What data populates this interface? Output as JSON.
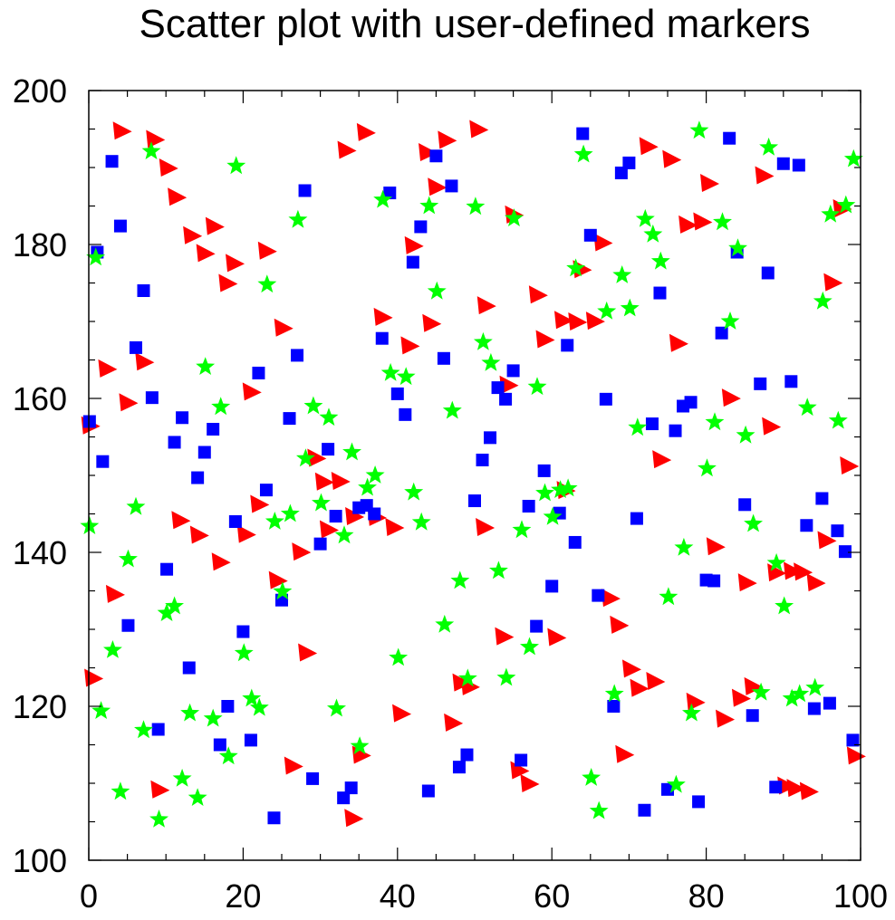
{
  "chart_data": {
    "type": "scatter",
    "title": "Scatter plot with user-defined markers",
    "xlabel": "",
    "ylabel": "",
    "xlim": [
      0,
      100
    ],
    "ylim": [
      100,
      200
    ],
    "grid": false,
    "x_ticks": [
      "0",
      "20",
      "40",
      "60",
      "80",
      "100"
    ],
    "y_ticks": [
      "100",
      "120",
      "140",
      "160",
      "180",
      "200"
    ],
    "series": [
      {
        "marker": "triangle",
        "color": "#ff0000",
        "points": [
          [
            4.3,
            194.8
          ],
          [
            8.6,
            193.7
          ],
          [
            10.3,
            190
          ],
          [
            11.4,
            186.2
          ],
          [
            13.4,
            181.2
          ],
          [
            15.1,
            178.9
          ],
          [
            16.3,
            182.4
          ],
          [
            18.9,
            177.6
          ],
          [
            18,
            175
          ],
          [
            23.1,
            179.2
          ],
          [
            2.4,
            163.9
          ],
          [
            5.1,
            159.5
          ],
          [
            7.2,
            164.8
          ],
          [
            3.4,
            134.6
          ],
          [
            0.6,
            123.7
          ],
          [
            9.2,
            109.2
          ],
          [
            11.9,
            144.2
          ],
          [
            14.3,
            142.3
          ],
          [
            17.1,
            138.8
          ],
          [
            20.4,
            142.4
          ],
          [
            21.1,
            160.9
          ],
          [
            25.2,
            169.2
          ],
          [
            22.1,
            146.3
          ],
          [
            24.5,
            136.4
          ],
          [
            26.5,
            112.3
          ],
          [
            27.5,
            140.1
          ],
          [
            28.3,
            127
          ],
          [
            29.5,
            152.3
          ],
          [
            30.5,
            149.2
          ],
          [
            31.1,
            143
          ],
          [
            32.6,
            149.3
          ],
          [
            33.4,
            192.3
          ],
          [
            35.9,
            194.6
          ],
          [
            34.4,
            144.7
          ],
          [
            35.3,
            113.7
          ],
          [
            34.3,
            105.5
          ],
          [
            37.3,
            144.6
          ],
          [
            39.6,
            143.3
          ],
          [
            38.1,
            170.6
          ],
          [
            41.6,
            166.9
          ],
          [
            42.1,
            179.9
          ],
          [
            43.9,
            192
          ],
          [
            46.4,
            193.6
          ],
          [
            45.1,
            187.5
          ],
          [
            44.4,
            169.8
          ],
          [
            40.5,
            119.1
          ],
          [
            47.2,
            117.9
          ],
          [
            48.3,
            123.1
          ],
          [
            49.4,
            122.6
          ],
          [
            50.5,
            195
          ],
          [
            51.5,
            172.1
          ],
          [
            55.1,
            183.9
          ],
          [
            54.4,
            161.8
          ],
          [
            58.2,
            173.5
          ],
          [
            59.1,
            167.7
          ],
          [
            61.5,
            170.2
          ],
          [
            63.3,
            170
          ],
          [
            65.6,
            170.1
          ],
          [
            63.9,
            176.8
          ],
          [
            66.6,
            180.3
          ],
          [
            61.8,
            148.1
          ],
          [
            53.8,
            129.1
          ],
          [
            51.3,
            143.3
          ],
          [
            55.8,
            111.7
          ],
          [
            57.1,
            110
          ],
          [
            60.6,
            129
          ],
          [
            67.6,
            134.1
          ],
          [
            68.7,
            130.6
          ],
          [
            69.4,
            113.8
          ],
          [
            70.3,
            124.9
          ],
          [
            71.3,
            122.4
          ],
          [
            73.4,
            123.3
          ],
          [
            74.2,
            152.1
          ],
          [
            72.5,
            192.8
          ],
          [
            75.5,
            191.1
          ],
          [
            76.4,
            167.2
          ],
          [
            77.6,
            182.6
          ],
          [
            79.5,
            183
          ],
          [
            80.4,
            188
          ],
          [
            83.2,
            160.1
          ],
          [
            81.2,
            140.8
          ],
          [
            84.5,
            121.1
          ],
          [
            86.1,
            122.6
          ],
          [
            85.3,
            136.1
          ],
          [
            82.4,
            118.4
          ],
          [
            78.6,
            120.6
          ],
          [
            88.4,
            156.4
          ],
          [
            87.5,
            189
          ],
          [
            89.1,
            137.4
          ],
          [
            91.2,
            137.6
          ],
          [
            92.5,
            137.5
          ],
          [
            94.2,
            136.1
          ],
          [
            90.4,
            109.7
          ],
          [
            91.6,
            109.4
          ],
          [
            93.3,
            109
          ],
          [
            95.6,
            141.6
          ],
          [
            96.4,
            175.1
          ],
          [
            97.6,
            184.7
          ],
          [
            98.5,
            151.3
          ],
          [
            99.4,
            113.6
          ],
          [
            0.2,
            156.5
          ]
        ]
      },
      {
        "marker": "square",
        "color": "#0000ff",
        "points": [
          [
            3,
            190.8
          ],
          [
            4.1,
            182.4
          ],
          [
            1.1,
            179
          ],
          [
            0.1,
            157
          ],
          [
            1.8,
            151.8
          ],
          [
            6.1,
            166.6
          ],
          [
            7.1,
            174
          ],
          [
            8.2,
            160.1
          ],
          [
            11.1,
            154.3
          ],
          [
            12.1,
            157.5
          ],
          [
            15,
            153
          ],
          [
            16.1,
            156
          ],
          [
            14.1,
            149.7
          ],
          [
            10.1,
            137.8
          ],
          [
            5.1,
            130.5
          ],
          [
            13,
            125
          ],
          [
            9,
            117
          ],
          [
            17,
            115
          ],
          [
            18,
            120
          ],
          [
            19,
            144
          ],
          [
            20,
            129.7
          ],
          [
            21,
            115.6
          ],
          [
            22,
            163.3
          ],
          [
            23,
            148.1
          ],
          [
            24,
            105.5
          ],
          [
            25,
            133.8
          ],
          [
            26,
            157.4
          ],
          [
            27,
            165.6
          ],
          [
            28,
            187
          ],
          [
            29,
            110.6
          ],
          [
            30,
            141.1
          ],
          [
            31,
            153.4
          ],
          [
            32,
            144.7
          ],
          [
            33,
            108.1
          ],
          [
            34,
            109.4
          ],
          [
            35,
            145.8
          ],
          [
            36,
            146.1
          ],
          [
            37,
            145
          ],
          [
            38,
            167.8
          ],
          [
            39,
            186.7
          ],
          [
            40,
            160.6
          ],
          [
            41,
            157.9
          ],
          [
            42,
            177.7
          ],
          [
            43,
            182.3
          ],
          [
            44,
            109
          ],
          [
            45,
            191.5
          ],
          [
            46,
            165.2
          ],
          [
            47,
            187.6
          ],
          [
            48,
            112.1
          ],
          [
            49,
            113.7
          ],
          [
            50,
            146.7
          ],
          [
            51,
            152
          ],
          [
            52,
            154.9
          ],
          [
            53,
            161.4
          ],
          [
            54,
            159.9
          ],
          [
            55,
            163.6
          ],
          [
            56,
            113
          ],
          [
            57,
            146
          ],
          [
            58,
            130.4
          ],
          [
            59,
            150.6
          ],
          [
            60,
            135.6
          ],
          [
            61,
            145.1
          ],
          [
            62,
            166.9
          ],
          [
            63,
            141.3
          ],
          [
            64,
            194.4
          ],
          [
            65,
            181.2
          ],
          [
            66,
            134.4
          ],
          [
            67,
            159.9
          ],
          [
            68,
            120
          ],
          [
            69,
            189.3
          ],
          [
            70,
            190.6
          ],
          [
            71,
            144.4
          ],
          [
            72,
            106.5
          ],
          [
            73,
            156.7
          ],
          [
            74,
            173.7
          ],
          [
            75,
            109.2
          ],
          [
            76,
            155.8
          ],
          [
            77,
            159
          ],
          [
            78,
            159.5
          ],
          [
            79,
            107.6
          ],
          [
            80,
            136.4
          ],
          [
            81,
            136.3
          ],
          [
            82,
            168.5
          ],
          [
            83,
            193.8
          ],
          [
            84,
            179
          ],
          [
            85,
            146.2
          ],
          [
            86,
            118.8
          ],
          [
            87,
            161.9
          ],
          [
            88,
            176.3
          ],
          [
            89,
            109.5
          ],
          [
            90,
            190.5
          ],
          [
            91,
            162.2
          ],
          [
            92,
            190.3
          ],
          [
            93,
            143.5
          ],
          [
            94,
            119.7
          ],
          [
            95,
            147
          ],
          [
            96,
            120.4
          ],
          [
            97,
            142.8
          ],
          [
            98,
            140.1
          ],
          [
            99,
            115.6
          ]
        ]
      },
      {
        "marker": "star",
        "color": "#00ff00",
        "points": [
          [
            0.1,
            143.4
          ],
          [
            0.9,
            178.3
          ],
          [
            1.6,
            119.4
          ],
          [
            3.1,
            127.3
          ],
          [
            4.1,
            108.9
          ],
          [
            5.1,
            139.1
          ],
          [
            6.1,
            145.9
          ],
          [
            7.1,
            116.9
          ],
          [
            8.1,
            192.1
          ],
          [
            9.1,
            105.3
          ],
          [
            10.1,
            132.1
          ],
          [
            11.1,
            133
          ],
          [
            12.1,
            110.6
          ],
          [
            13.1,
            119.1
          ],
          [
            14.1,
            108.1
          ],
          [
            15.1,
            164.1
          ],
          [
            16.1,
            118.4
          ],
          [
            17.1,
            158.9
          ],
          [
            18.1,
            113.5
          ],
          [
            19.1,
            190.2
          ],
          [
            20.1,
            126.9
          ],
          [
            21.1,
            121
          ],
          [
            22.1,
            119.8
          ],
          [
            23.1,
            174.8
          ],
          [
            24.1,
            144
          ],
          [
            25.1,
            134.9
          ],
          [
            26.1,
            145
          ],
          [
            27.1,
            183.2
          ],
          [
            28.1,
            152.2
          ],
          [
            29.1,
            159
          ],
          [
            30.1,
            146.4
          ],
          [
            31.1,
            157.5
          ],
          [
            32.1,
            119.7
          ],
          [
            33.1,
            142.2
          ],
          [
            34.1,
            153
          ],
          [
            35.1,
            114.8
          ],
          [
            36.1,
            148.4
          ],
          [
            37.1,
            150
          ],
          [
            38.1,
            185.8
          ],
          [
            39.1,
            163.3
          ],
          [
            40.1,
            126.3
          ],
          [
            41.1,
            162.8
          ],
          [
            42.1,
            147.8
          ],
          [
            43.1,
            143.9
          ],
          [
            44.1,
            185
          ],
          [
            45.1,
            173.9
          ],
          [
            46.1,
            130.6
          ],
          [
            47.1,
            158.4
          ],
          [
            48.1,
            136.3
          ],
          [
            49.1,
            123.6
          ],
          [
            50.1,
            184.9
          ],
          [
            51.1,
            167.3
          ],
          [
            52.1,
            164.6
          ],
          [
            53.1,
            137.6
          ],
          [
            54.1,
            123.7
          ],
          [
            55.1,
            183.4
          ],
          [
            56.1,
            142.9
          ],
          [
            57.1,
            127.7
          ],
          [
            58.1,
            161.5
          ],
          [
            59.1,
            147.7
          ],
          [
            60.1,
            144.6
          ],
          [
            61.1,
            148.1
          ],
          [
            62.1,
            148.3
          ],
          [
            63.1,
            176.9
          ],
          [
            64.1,
            191.7
          ],
          [
            65.1,
            110.7
          ],
          [
            66.1,
            106.4
          ],
          [
            67.1,
            171.3
          ],
          [
            68.1,
            121.6
          ],
          [
            69.1,
            176
          ],
          [
            70.1,
            171.7
          ],
          [
            71.1,
            156.2
          ],
          [
            72.1,
            183.3
          ],
          [
            73.1,
            181.3
          ],
          [
            74.1,
            177.8
          ],
          [
            75.1,
            134.2
          ],
          [
            76.1,
            109.8
          ],
          [
            77.1,
            140.6
          ],
          [
            78.1,
            119.1
          ],
          [
            79.1,
            194.8
          ],
          [
            80.1,
            150.9
          ],
          [
            81.1,
            156.9
          ],
          [
            82.1,
            182.9
          ],
          [
            83.1,
            170
          ],
          [
            84.1,
            179.5
          ],
          [
            85.1,
            155.2
          ],
          [
            86.1,
            143.7
          ],
          [
            87.1,
            121.8
          ],
          [
            88.1,
            192.6
          ],
          [
            89.1,
            138.6
          ],
          [
            90.1,
            133
          ],
          [
            91.1,
            121
          ],
          [
            92.1,
            121.6
          ],
          [
            93.1,
            158.8
          ],
          [
            94.1,
            122.4
          ],
          [
            95.1,
            172.6
          ],
          [
            96.1,
            183.9
          ],
          [
            97.1,
            157.1
          ],
          [
            98.1,
            185.1
          ],
          [
            99.1,
            191.1
          ]
        ]
      }
    ]
  }
}
